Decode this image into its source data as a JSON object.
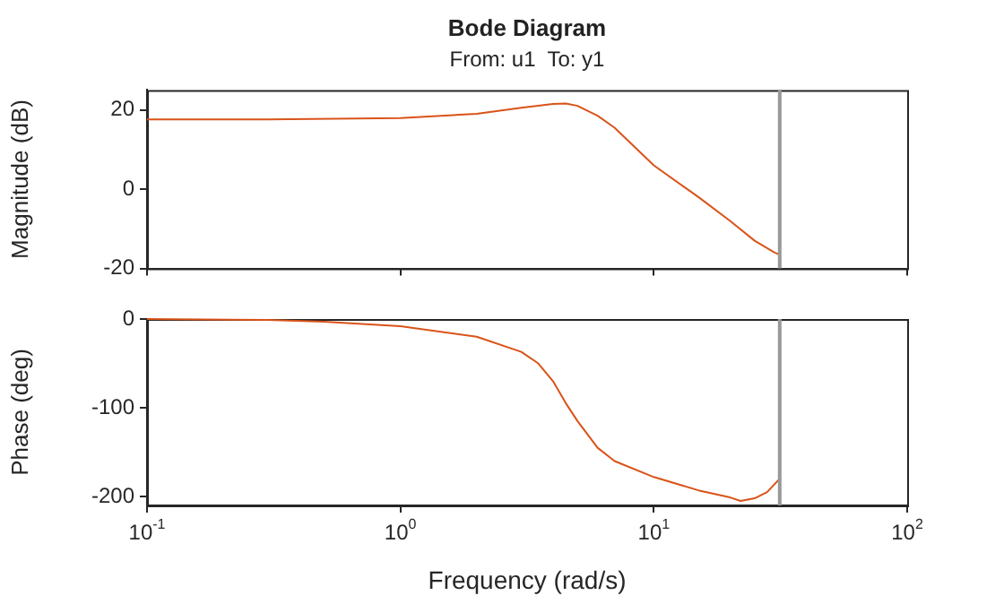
{
  "chart_data": [
    {
      "type": "line",
      "title": "Bode Diagram",
      "subtitle": "From: u1  To: y1",
      "ylabel": "Magnitude (dB)",
      "log": "x",
      "tick_labels": "y",
      "grid": false,
      "x": [
        0.1,
        0.3,
        1,
        2,
        3,
        4,
        4.5,
        5,
        6,
        7,
        10,
        15,
        20,
        25,
        30,
        31.4
      ],
      "series": [
        {
          "color": "#d95319",
          "values": [
            17.6,
            17.6,
            17.9,
            19,
            20.5,
            21.5,
            21.6,
            21,
            18.5,
            15.5,
            6,
            -2,
            -8,
            -13,
            -16,
            -16.5
          ]
        }
      ],
      "xlim": [
        0.1,
        100
      ],
      "xticks": [
        {
          "value": 0.1,
          "label": null
        },
        {
          "value": 1,
          "label": null
        },
        {
          "value": 10,
          "label": null
        },
        {
          "value": 100,
          "label": null
        }
      ],
      "ylim": [
        -20,
        25
      ],
      "yticks": [
        -20,
        0,
        20
      ],
      "ref_lines": [
        {
          "axis": "x",
          "value": 31.4,
          "color": "#999999"
        }
      ]
    },
    {
      "type": "line",
      "ylabel": "Phase (deg)",
      "xlabel": "Frequency (rad/s)",
      "log": "x",
      "grid": false,
      "x": [
        0.1,
        0.3,
        0.5,
        1,
        2,
        3,
        3.5,
        4,
        4.5,
        5,
        6,
        7,
        10,
        15,
        20,
        22,
        25,
        28,
        31.4
      ],
      "series": [
        {
          "color": "#d95319",
          "values": [
            0,
            -1,
            -3,
            -8,
            -20,
            -37,
            -50,
            -70,
            -95,
            -115,
            -145,
            -160,
            -178,
            -193,
            -201,
            -205,
            -202,
            -195,
            -180
          ]
        }
      ],
      "xlim": [
        0.1,
        100
      ],
      "xticks": [
        {
          "value": 0.1,
          "label": "10$^{-1}$"
        },
        {
          "value": 1,
          "label": "10$^{0}$"
        },
        {
          "value": 10,
          "label": "10$^{1}$"
        },
        {
          "value": 100,
          "label": "10$^{2}$"
        }
      ],
      "ylim": [
        -210,
        0
      ],
      "yticks": [
        -200,
        -100,
        0
      ],
      "ref_lines": [
        {
          "axis": "x",
          "value": 31.4,
          "color": "#999999"
        }
      ]
    }
  ]
}
